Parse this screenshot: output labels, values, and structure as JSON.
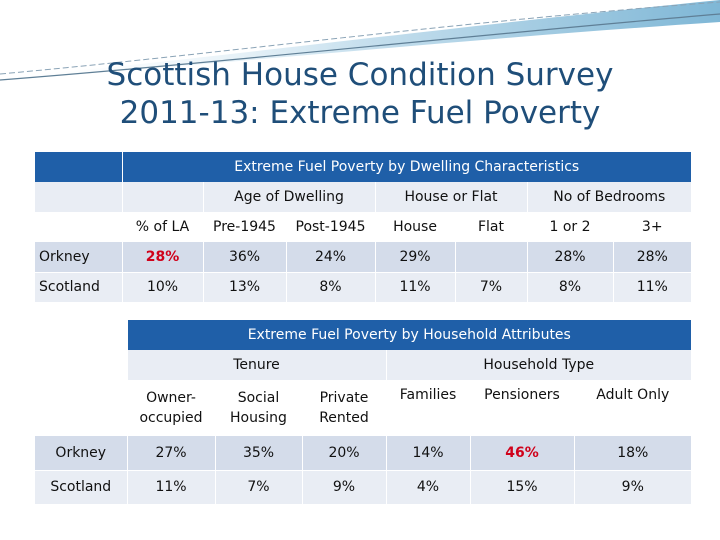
{
  "title_line1": "Scottish House Condition Survey",
  "title_line2": "2011-13: Extreme Fuel Poverty",
  "colors": {
    "title": "#1f4e79",
    "header_blue": "#1f5fa8",
    "highlight_red": "#d0021b",
    "swoosh": "#7fb7d6"
  },
  "table1": {
    "heading": "Extreme Fuel Poverty by Dwelling Characteristics",
    "groups": {
      "age": "Age of Dwelling",
      "house_flat": "House or Flat",
      "bedrooms": "No of Bedrooms"
    },
    "columns": [
      "% of LA",
      "Pre-1945",
      "Post-1945",
      "House",
      "Flat",
      "1 or 2",
      "3+"
    ],
    "rows": [
      {
        "label": "Orkney",
        "values": [
          "28%",
          "36%",
          "24%",
          "29%",
          "",
          "28%",
          "28%"
        ]
      },
      {
        "label": "Scotland",
        "values": [
          "10%",
          "13%",
          "8%",
          "11%",
          "7%",
          "8%",
          "11%"
        ]
      }
    ]
  },
  "table2": {
    "heading": "Extreme Fuel Poverty by Household Attributes",
    "groups": {
      "tenure": "Tenure",
      "household_type": "Household Type"
    },
    "columns": [
      "Owner-occupied",
      "Social Housing",
      "Private Rented",
      "Families",
      "Pensioners",
      "Adult Only"
    ],
    "columns_display": [
      [
        "Owner-",
        "occupied"
      ],
      [
        "Social",
        "Housing"
      ],
      [
        "Private",
        "Rented"
      ],
      [
        "Families"
      ],
      [
        "Pensioners"
      ],
      [
        "Adult Only"
      ]
    ],
    "rows": [
      {
        "label": "Orkney",
        "values": [
          "27%",
          "35%",
          "20%",
          "14%",
          "46%",
          "18%"
        ]
      },
      {
        "label": "Scotland",
        "values": [
          "11%",
          "7%",
          "9%",
          "4%",
          "15%",
          "9%"
        ]
      }
    ]
  }
}
